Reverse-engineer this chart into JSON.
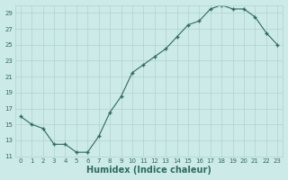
{
  "x": [
    0,
    1,
    2,
    3,
    4,
    5,
    6,
    7,
    8,
    9,
    10,
    11,
    12,
    13,
    14,
    15,
    16,
    17,
    18,
    19,
    20,
    21,
    22,
    23
  ],
  "y": [
    16,
    15,
    14.5,
    12.5,
    12.5,
    11.5,
    11.5,
    13.5,
    16.5,
    18.5,
    21.5,
    22.5,
    23.5,
    24.5,
    26,
    27.5,
    28,
    29.5,
    30,
    29.5,
    29.5,
    28.5,
    26.5,
    25
  ],
  "line_color": "#2e6b5e",
  "marker": "+",
  "marker_size": 3.5,
  "marker_linewidth": 1.0,
  "line_width": 0.8,
  "bg_color": "#cceae7",
  "grid_major_color": "#b0d4d0",
  "grid_minor_color": "#c5e4e0",
  "xlabel": "Humidex (Indice chaleur)",
  "xlabel_fontsize": 7,
  "tick_fontsize": 5,
  "ymin": 11,
  "ymax": 30,
  "xmin": -0.5,
  "xmax": 23.5,
  "xticks": [
    0,
    1,
    2,
    3,
    4,
    5,
    6,
    7,
    8,
    9,
    10,
    11,
    12,
    13,
    14,
    15,
    16,
    17,
    18,
    19,
    20,
    21,
    22,
    23
  ],
  "yticks": [
    11,
    13,
    15,
    17,
    19,
    21,
    23,
    25,
    27,
    29
  ]
}
